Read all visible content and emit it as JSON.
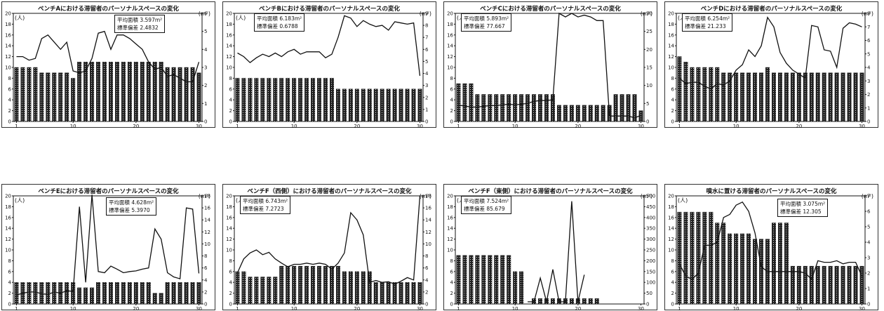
{
  "chart_data": [
    {
      "type": "bar",
      "title": "ベンチAにおける滞留者のパーソナルスペースの変化",
      "left_unit": "(人)",
      "right_unit": "(m²)",
      "stats": {
        "mean_label": "平均面積",
        "mean_value": "3.597m²",
        "sd_label": "標準偏差",
        "sd_value": "2.4832"
      },
      "x": [
        1,
        2,
        3,
        4,
        5,
        6,
        7,
        8,
        9,
        10,
        11,
        12,
        13,
        14,
        15,
        16,
        17,
        18,
        19,
        20,
        21,
        22,
        23,
        24,
        25,
        26,
        27,
        28,
        29,
        30
      ],
      "xticks": [
        1,
        10,
        20,
        30
      ],
      "ylim_left": [
        0,
        20
      ],
      "yticks_left": [
        0,
        2,
        4,
        6,
        8,
        10,
        12,
        14,
        16,
        18,
        20
      ],
      "ylim_right": [
        0,
        6
      ],
      "yticks_right": [
        0,
        1,
        2,
        3,
        4,
        5,
        6
      ],
      "bars": [
        10,
        10,
        10,
        10,
        9,
        9,
        9,
        9,
        9,
        8,
        11,
        11,
        11,
        11,
        11,
        11,
        11,
        11,
        11,
        11,
        11,
        11,
        11,
        11,
        10,
        10,
        10,
        10,
        10,
        9
      ],
      "line": [
        3.6,
        3.6,
        3.4,
        3.5,
        4.6,
        4.8,
        4.4,
        4.0,
        4.4,
        2.8,
        2.7,
        2.8,
        3.5,
        4.9,
        5.0,
        4.0,
        4.8,
        4.8,
        4.6,
        4.3,
        4.0,
        3.3,
        2.9,
        3.0,
        2.5,
        2.6,
        2.4,
        2.2,
        2.2,
        3.3
      ]
    },
    {
      "type": "bar",
      "title": "ベンチBにおける滞留者のパーソナルスペースの変化",
      "left_unit": "(人)",
      "right_unit": "(m²)",
      "stats": {
        "mean_label": "平均面積",
        "mean_value": "6.183m²",
        "sd_label": "標準偏差",
        "sd_value": "0.6788"
      },
      "x": [
        1,
        2,
        3,
        4,
        5,
        6,
        7,
        8,
        9,
        10,
        11,
        12,
        13,
        14,
        15,
        16,
        17,
        18,
        19,
        20,
        21,
        22,
        23,
        24,
        25,
        26,
        27,
        28,
        29,
        30
      ],
      "xticks": [
        1,
        10,
        20,
        30
      ],
      "ylim_left": [
        0,
        20
      ],
      "yticks_left": [
        0,
        2,
        4,
        6,
        8,
        10,
        12,
        14,
        16,
        18,
        20
      ],
      "ylim_right": [
        0,
        9
      ],
      "yticks_right": [
        0,
        1,
        2,
        3,
        4,
        5,
        6,
        7,
        8,
        9
      ],
      "bars": [
        8,
        8,
        8,
        8,
        8,
        8,
        8,
        8,
        8,
        8,
        8,
        8,
        8,
        8,
        8,
        8,
        6,
        6,
        6,
        6,
        6,
        6,
        6,
        6,
        6,
        6,
        6,
        6,
        6,
        6
      ],
      "line": [
        5.7,
        5.4,
        4.9,
        5.3,
        5.6,
        5.4,
        5.7,
        5.4,
        5.8,
        6.0,
        5.6,
        5.8,
        5.8,
        5.8,
        5.3,
        5.6,
        7.0,
        8.8,
        8.6,
        7.9,
        8.4,
        8.1,
        7.9,
        8.0,
        7.6,
        8.3,
        8.2,
        8.1,
        8.2,
        3.8
      ]
    },
    {
      "type": "bar",
      "title": "ベンチCにおける滞留者のパーソナルスペースの変化",
      "left_unit": "(人)",
      "right_unit": "(m²)",
      "stats": {
        "mean_label": "平均面積",
        "mean_value": "5.893m²",
        "sd_label": "標準偏差",
        "sd_value": "77.667"
      },
      "x": [
        1,
        2,
        3,
        4,
        5,
        6,
        7,
        8,
        9,
        10,
        11,
        12,
        13,
        14,
        15,
        16,
        17,
        18,
        19,
        20,
        21,
        22,
        23,
        24,
        25,
        26,
        27,
        28,
        29,
        30
      ],
      "xticks": [
        1,
        10,
        20,
        30
      ],
      "ylim_left": [
        0,
        20
      ],
      "yticks_left": [
        0,
        2,
        4,
        6,
        8,
        10,
        12,
        14,
        16,
        18,
        20
      ],
      "ylim_right": [
        0,
        30
      ],
      "yticks_right": [
        0,
        5,
        10,
        15,
        20,
        25,
        30
      ],
      "bars": [
        7,
        7,
        7,
        5,
        5,
        5,
        5,
        5,
        5,
        5,
        5,
        5,
        5,
        5,
        5,
        5,
        3,
        3,
        3,
        3,
        3,
        3,
        3,
        3,
        3,
        5,
        5,
        5,
        5,
        2
      ],
      "line": [
        4.5,
        4.3,
        4.0,
        4.0,
        4.2,
        4.4,
        4.4,
        4.6,
        4.8,
        4.6,
        4.8,
        5.0,
        5.6,
        5.8,
        5.8,
        6.0,
        30.0,
        29.0,
        30.0,
        29.0,
        29.5,
        29.0,
        28.0,
        28.0,
        1.5,
        1.5,
        1.5,
        1.5,
        1.0,
        1.7
      ]
    },
    {
      "type": "bar",
      "title": "ベンチDにおける滞留者のパーソナルスペースの変化",
      "left_unit": "(人)",
      "right_unit": "(m²)",
      "stats": {
        "mean_label": "平均面積",
        "mean_value": "6.254m²",
        "sd_label": "標準偏差",
        "sd_value": "21.233"
      },
      "x": [
        1,
        2,
        3,
        4,
        5,
        6,
        7,
        8,
        9,
        10,
        11,
        12,
        13,
        14,
        15,
        16,
        17,
        18,
        19,
        20,
        21,
        22,
        23,
        24,
        25,
        26,
        27,
        28,
        29,
        30
      ],
      "xticks": [
        1,
        10,
        20,
        30
      ],
      "ylim_left": [
        0,
        20
      ],
      "yticks_left": [
        0,
        2,
        4,
        6,
        8,
        10,
        12,
        14,
        16,
        18,
        20
      ],
      "ylim_right": [
        0,
        8
      ],
      "yticks_right": [
        0,
        1,
        2,
        3,
        4,
        5,
        6,
        7,
        8
      ],
      "bars": [
        12,
        11,
        10,
        10,
        10,
        10,
        10,
        9,
        9,
        9,
        9,
        9,
        9,
        9,
        10,
        9,
        9,
        9,
        9,
        9,
        9,
        9,
        9,
        9,
        9,
        9,
        9,
        9,
        9,
        9
      ],
      "line": [
        3.2,
        2.8,
        2.9,
        2.9,
        2.6,
        2.4,
        2.8,
        2.7,
        3.0,
        3.8,
        4.2,
        5.3,
        4.8,
        5.6,
        7.7,
        7.0,
        5.1,
        4.3,
        3.8,
        3.5,
        3.2,
        7.1,
        7.0,
        5.3,
        5.2,
        4.0,
        6.9,
        7.3,
        7.2,
        7.0
      ]
    },
    {
      "type": "bar",
      "title": "ベンチEにおける滞留者のパーソナルスペースの変化",
      "left_unit": "(人)",
      "right_unit": "(m²)",
      "stats": {
        "mean_label": "平均面積",
        "mean_value": "4.628m²",
        "sd_label": "標準偏差",
        "sd_value": "5.3970"
      },
      "x": [
        1,
        2,
        3,
        4,
        5,
        6,
        7,
        8,
        9,
        10,
        11,
        12,
        13,
        14,
        15,
        16,
        17,
        18,
        19,
        20,
        21,
        22,
        23,
        24,
        25,
        26,
        27,
        28,
        29,
        30
      ],
      "xticks": [
        1,
        10,
        20,
        30
      ],
      "ylim_left": [
        0,
        20
      ],
      "yticks_left": [
        0,
        2,
        4,
        6,
        8,
        10,
        12,
        14,
        16,
        18,
        20
      ],
      "ylim_right": [
        0,
        18
      ],
      "yticks_right": [
        0,
        2,
        4,
        6,
        8,
        10,
        12,
        14,
        16,
        18
      ],
      "bars": [
        4,
        4,
        4,
        4,
        4,
        4,
        4,
        4,
        4,
        4,
        3,
        3,
        3,
        4,
        4,
        4,
        4,
        4,
        4,
        4,
        4,
        4,
        2,
        2,
        4,
        4,
        4,
        4,
        4,
        4
      ],
      "line": [
        1.5,
        1.8,
        2.0,
        2.0,
        1.7,
        1.6,
        2.0,
        1.8,
        2.2,
        2.1,
        16.2,
        3.6,
        18.2,
        5.4,
        5.2,
        6.3,
        5.8,
        5.2,
        5.4,
        5.5,
        5.8,
        6.0,
        12.5,
        10.8,
        5.2,
        4.5,
        4.2,
        16.0,
        15.8,
        5.1
      ]
    },
    {
      "type": "bar",
      "title": "ベンチF（西側）における滞留者のパーソナルスペースの変化",
      "left_unit": "(人)",
      "right_unit": "(m²)",
      "stats": {
        "mean_label": "平均面積",
        "mean_value": "6.743m²",
        "sd_label": "標準偏差",
        "sd_value": "7.2723"
      },
      "x": [
        1,
        2,
        3,
        4,
        5,
        6,
        7,
        8,
        9,
        10,
        11,
        12,
        13,
        14,
        15,
        16,
        17,
        18,
        19,
        20,
        21,
        22,
        23,
        24,
        25,
        26,
        27,
        28,
        29,
        30
      ],
      "xticks": [
        1,
        10,
        20,
        30
      ],
      "ylim_left": [
        0,
        20
      ],
      "yticks_left": [
        0,
        2,
        4,
        6,
        8,
        10,
        12,
        14,
        16,
        18,
        20
      ],
      "ylim_right": [
        0,
        18
      ],
      "yticks_right": [
        0,
        2,
        4,
        6,
        8,
        10,
        12,
        14,
        16,
        18
      ],
      "bars": [
        6,
        6,
        5,
        5,
        5,
        5,
        5,
        7,
        7,
        7,
        7,
        7,
        7,
        7,
        7,
        7,
        7,
        6,
        6,
        6,
        6,
        6,
        4,
        4,
        4,
        4,
        4,
        4,
        4,
        4
      ],
      "line": [
        5.2,
        7.5,
        8.5,
        9.0,
        8.2,
        8.6,
        7.5,
        6.8,
        6.2,
        6.6,
        6.6,
        6.8,
        6.6,
        6.8,
        6.6,
        5.8,
        6.8,
        8.5,
        15.2,
        14.0,
        11.5,
        3.6,
        3.9,
        3.6,
        3.7,
        3.3,
        3.8,
        4.4,
        4.0,
        18.0
      ]
    },
    {
      "type": "bar",
      "title": "ベンチF（東側）における滞留者のパーソナルスペースの変化",
      "left_unit": "(人)",
      "right_unit": "(m²)",
      "stats": {
        "mean_label": "平均面積",
        "mean_value": "7.524m²",
        "sd_label": "標準偏差",
        "sd_value": "85.679"
      },
      "x": [
        1,
        2,
        3,
        4,
        5,
        6,
        7,
        8,
        9,
        10,
        11,
        12,
        13,
        14,
        15,
        16,
        17,
        18,
        19,
        20,
        21,
        22,
        23,
        24,
        25,
        26,
        27,
        28,
        29,
        30
      ],
      "xticks": [
        1,
        10,
        20,
        30
      ],
      "ylim_left": [
        0,
        20
      ],
      "yticks_left": [
        0,
        2,
        4,
        6,
        8,
        10,
        12,
        14,
        16,
        18,
        20
      ],
      "ylim_right": [
        0,
        500
      ],
      "yticks_right": [
        0,
        50,
        100,
        150,
        200,
        250,
        300,
        350,
        400,
        450,
        500
      ],
      "bars": [
        9,
        9,
        9,
        9,
        9,
        9,
        9,
        9,
        9,
        6,
        6,
        0,
        1,
        1,
        1,
        1,
        1,
        1,
        1,
        1,
        1,
        1,
        1,
        0,
        0,
        0,
        0,
        0,
        0,
        0
      ],
      "line": [
        null,
        null,
        null,
        null,
        null,
        null,
        null,
        null,
        null,
        null,
        null,
        10,
        10,
        120,
        10,
        160,
        10,
        10,
        475,
        10,
        135,
        null,
        null,
        null,
        null,
        null,
        null,
        null,
        null,
        null
      ]
    },
    {
      "type": "bar",
      "title": "噴水に置ける滞留者のパーソナルスペースの変化",
      "left_unit": "(人)",
      "right_unit": "(m²)",
      "stats": {
        "mean_label": "平均面積",
        "mean_value": "3.075m²",
        "sd_label": "標準偏差",
        "sd_value": "12.305"
      },
      "x": [
        1,
        2,
        3,
        4,
        5,
        6,
        7,
        8,
        9,
        10,
        11,
        12,
        13,
        14,
        15,
        16,
        17,
        18,
        19,
        20,
        21,
        22,
        23,
        24,
        25,
        26,
        27,
        28,
        29,
        30
      ],
      "xticks": [
        1,
        10,
        20,
        30
      ],
      "ylim_left": [
        0,
        20
      ],
      "yticks_left": [
        0,
        2,
        4,
        6,
        8,
        10,
        12,
        14,
        16,
        18,
        20
      ],
      "ylim_right": [
        0,
        7
      ],
      "yticks_right": [
        0,
        1,
        2,
        3,
        4,
        5,
        6,
        7
      ],
      "bars": [
        17,
        17,
        17,
        17,
        17,
        17,
        15,
        15,
        13,
        13,
        13,
        13,
        12,
        12,
        12,
        15,
        15,
        15,
        7,
        7,
        7,
        7,
        7,
        7,
        7,
        7,
        7,
        7,
        7,
        7
      ],
      "line": [
        2.6,
        1.8,
        1.6,
        2.0,
        3.8,
        3.8,
        4.0,
        5.6,
        5.8,
        6.4,
        6.6,
        6.0,
        4.6,
        2.4,
        2.1,
        2.1,
        2.1,
        2.1,
        2.1,
        2.1,
        2.0,
        1.6,
        2.8,
        2.7,
        2.7,
        2.8,
        2.6,
        2.7,
        2.7,
        1.8
      ]
    }
  ]
}
